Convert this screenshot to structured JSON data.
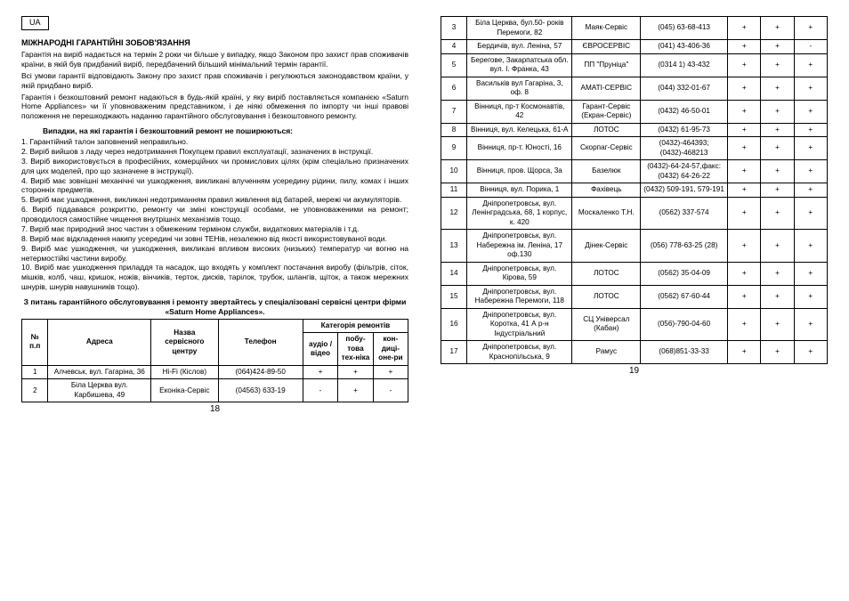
{
  "ua": "UA",
  "title": "МІЖНАРОДНІ ГАРАНТІЙНІ ЗОБОВ'ЯЗАННЯ",
  "para1": "Гарантія на виріб надається на термін 2 роки чи більше у випадку, якщо Законом про захист прав споживачів країни, в якій був придбаний виріб, передбачений більший мінімальний термін гарантії.",
  "para2": "Всі умови гарантії відповідають Закону про захист прав споживачів і регулюються законодавством країни, у якій придбано виріб.",
  "para3": "Гарантія і безкоштовний ремонт надаються в будь-якій країні, у яку виріб поставляється компанією «Saturn Home Appliances» чи її уповноваженим представником, і де ніякі обмеження по імпорту чи інші правові положення не перешкоджають наданню гарантійного обслуговування і безкоштовного ремонту.",
  "sub1": "Випадки, на які гарантія і безкоштовний ремонт не поширюються:",
  "items": [
    "1.   Гарантійний талон заповнений неправильно.",
    "2. Виріб вийшов з ладу через недотримання Покупцем правил експлуатації, зазначених в інструкції.",
    "3.   Виріб використовується в професійних, комерційних чи промислових цілях (крім спеціально призначених для цих моделей, про що зазначене в інструкції).",
    "4. Виріб має зовнішні механічні чи ушкодження, викликані влученням усередину  рідини,  пилу,  комах  і  інших  сторонніх предметів.",
    "5.  Виріб має ушкодження,  викликані недотриманням правил живлення від батарей, мережі чи акумуляторів.",
    "6.  Виріб піддавався розкриттю, ремонту чи зміні конструкції особами, не уповноваженими на ремонт; проводилося самостійне чищення внутрішніх механізмів тощо.",
    "7. Виріб має природний знос частин з обмеженим терміном служби, видаткових матеріалів і т.д.",
    "8.  Виріб має відкладення накипу усередині чи зовні ТЕНів, незалежно від якості використовуваної води.",
    "9. Виріб  має  ушкодження, чи ушкодження, викликані  впливом високих (низьких) температур чи вогню на нетермостійкі частини виробу.",
    "10.  Виріб має ушкодження приладдя та насадок,  що входять у комплект постачання виробу (фільтрів, сіток, мішків, колб, чаш, кришок, ножів, вінчиків, терток, дисків, тарілок, трубок, шлангів, щіток, а також мережних шнурів, шнурів навушників тощо)."
  ],
  "lead": "З питань гарантійного обслуговування і ремонту звертайтесь у спеціалізовані сервісні центри фірми «Saturn Home Appliances».",
  "th": {
    "n": "№ п.п",
    "addr": "Адреса",
    "name": "Назва сервісного центру",
    "tel": "Телефон",
    "cat": "Категорія ремонтів",
    "c1": "аудіо / відео",
    "c2": "побу-това тех-ніка",
    "c3": "кон-диці-оне-ри"
  },
  "rows": [
    {
      "n": "1",
      "addr": "Алчевськ, вул. Гагаріна, 36",
      "name": "Hi-Fi (Кіслов)",
      "tel": "(064)424-89-50",
      "c1": "+",
      "c2": "+",
      "c3": "+"
    },
    {
      "n": "2",
      "addr": "Біла Церква вул. Карбишева, 49",
      "name": "Еконіка-Сервіс",
      "tel": "(04563) 633-19",
      "c1": "-",
      "c2": "+",
      "c3": "-"
    },
    {
      "n": "3",
      "addr": "Біла Церква, бул.50- років Перемоги, 82",
      "name": "Маяк-Сервіс",
      "tel": "(045) 63-68-413",
      "c1": "+",
      "c2": "+",
      "c3": "+"
    },
    {
      "n": "4",
      "addr": "Бердичів, вул. Леніна, 57",
      "name": "ЄВРОСЕРВІС",
      "tel": "(041) 43-406-36",
      "c1": "+",
      "c2": "+",
      "c3": "-"
    },
    {
      "n": "5",
      "addr": "Берегове, Закарпатська обл. вул. І. Франка, 43",
      "name": "ПП \"Пруніца\"",
      "tel": "(0314 1) 43-432",
      "c1": "+",
      "c2": "+",
      "c3": "+"
    },
    {
      "n": "6",
      "addr": "Васильків вул Гагаріна, 3, оф. 8",
      "name": "АМАТІ-СЕРВІС",
      "tel": "(044) 332-01-67",
      "c1": "+",
      "c2": "+",
      "c3": "+"
    },
    {
      "n": "7",
      "addr": "Вінниця, пр-т Космонавтів, 42",
      "name": "Гарант-Сервіс (Екран-Сервіс)",
      "tel": "(0432) 46-50-01",
      "c1": "+",
      "c2": "+",
      "c3": "+"
    },
    {
      "n": "8",
      "addr": "Вінниця, вул. Келецька, 61-А",
      "name": "ЛОТОС",
      "tel": "(0432) 61-95-73",
      "c1": "+",
      "c2": "+",
      "c3": "+"
    },
    {
      "n": "9",
      "addr": "Вінниця, пр-т. Юності, 16",
      "name": "Скорпаг-Сервіс",
      "tel": "(0432)-464393; (0432)-468213",
      "c1": "+",
      "c2": "+",
      "c3": "+"
    },
    {
      "n": "10",
      "addr": "Вінниця, пров. Щорса, 3а",
      "name": "Базелюк",
      "tel": "(0432)-64-24-57,факс:(0432) 64-26-22",
      "c1": "+",
      "c2": "+",
      "c3": "+"
    },
    {
      "n": "11",
      "addr": "Вінниця, вул. Порика, 1",
      "name": "Фахівець",
      "tel": "(0432) 509-191, 579-191",
      "c1": "+",
      "c2": "+",
      "c3": "+"
    },
    {
      "n": "12",
      "addr": "Дніпропетровськ, вул. Ленінградська, 68, 1 корпус, к. 420",
      "name": "Москаленко Т.Н.",
      "tel": "(0562) 337-574",
      "c1": "+",
      "c2": "+",
      "c3": "+"
    },
    {
      "n": "13",
      "addr": "Дніпропетровськ, вул. Набережна ім. Леніна, 17 оф.130",
      "name": "Дінек-Сервіс",
      "tel": "(056) 778-63-25 (28)",
      "c1": "+",
      "c2": "+",
      "c3": "+"
    },
    {
      "n": "14",
      "addr": "Дніпропетровськ, вул. Кірова, 59",
      "name": "ЛОТОС",
      "tel": "(0562) 35-04-09",
      "c1": "+",
      "c2": "+",
      "c3": "+"
    },
    {
      "n": "15",
      "addr": "Дніпропетровськ, вул. Набережна Перемоги, 118",
      "name": "ЛОТОС",
      "tel": "(0562) 67-60-44",
      "c1": "+",
      "c2": "+",
      "c3": "+"
    },
    {
      "n": "16",
      "addr": "Дніпропетровськ, вул. Коротка, 41 А р-н Індустріальний",
      "name": "СЦ Універсал (Кабан)",
      "tel": "(056)-790-04-60",
      "c1": "+",
      "c2": "+",
      "c3": "+"
    },
    {
      "n": "17",
      "addr": "Дніпропетровськ, вул. Краснопільська, 9",
      "name": "Рамус",
      "tel": "(068)851-33-33",
      "c1": "+",
      "c2": "+",
      "c3": "+"
    }
  ],
  "pageLeft": "18",
  "pageRight": "19"
}
